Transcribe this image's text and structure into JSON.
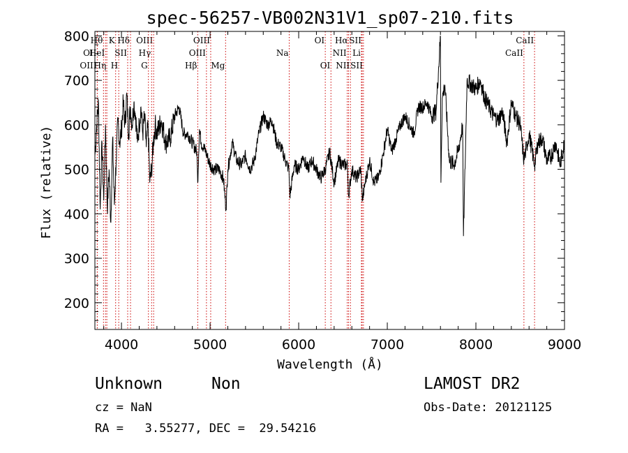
{
  "chart_data": {
    "type": "line",
    "title": "spec-56257-VB002N31V1_sp07-210.fits",
    "xlabel": "Wavelength (Å)",
    "ylabel": "Flux (relative)",
    "xlim": [
      3700,
      9000
    ],
    "ylim": [
      140,
      810
    ],
    "xticks": [
      4000,
      5000,
      6000,
      7000,
      8000,
      9000
    ],
    "yticks": [
      200,
      300,
      400,
      500,
      600,
      700,
      800
    ],
    "grid": false,
    "series": [
      {
        "x": [
          3700,
          3720,
          3740,
          3760,
          3780,
          3800,
          3820,
          3840,
          3860,
          3880,
          3900,
          3920,
          3940,
          3960,
          3980,
          4000,
          4020,
          4040,
          4060,
          4080,
          4100,
          4120,
          4140,
          4160,
          4180,
          4200,
          4220,
          4240,
          4260,
          4280,
          4300,
          4320,
          4340,
          4360,
          4380,
          4400,
          4450,
          4500,
          4550,
          4600,
          4650,
          4700,
          4750,
          4800,
          4850,
          4860,
          4880,
          4900,
          4950,
          5000,
          5050,
          5100,
          5150,
          5180,
          5200,
          5250,
          5300,
          5350,
          5400,
          5450,
          5500,
          5550,
          5600,
          5650,
          5700,
          5750,
          5800,
          5850,
          5890,
          5900,
          5950,
          6000,
          6050,
          6100,
          6150,
          6200,
          6250,
          6300,
          6350,
          6400,
          6450,
          6500,
          6550,
          6563,
          6600,
          6650,
          6700,
          6720,
          6750,
          6800,
          6850,
          6900,
          6950,
          7000,
          7050,
          7100,
          7150,
          7200,
          7250,
          7300,
          7350,
          7400,
          7450,
          7500,
          7550,
          7600,
          7605,
          7620,
          7650,
          7700,
          7750,
          7800,
          7850,
          7860,
          7900,
          7950,
          8000,
          8050,
          8100,
          8150,
          8200,
          8250,
          8300,
          8350,
          8400,
          8450,
          8500,
          8542,
          8600,
          8662,
          8700,
          8750,
          8800,
          8850,
          8900,
          8950,
          9000
        ],
        "values": [
          530,
          600,
          650,
          410,
          560,
          430,
          600,
          410,
          500,
          380,
          570,
          420,
          520,
          610,
          560,
          590,
          650,
          600,
          670,
          580,
          640,
          600,
          650,
          620,
          560,
          600,
          640,
          580,
          620,
          550,
          600,
          470,
          500,
          560,
          600,
          580,
          610,
          560,
          570,
          620,
          640,
          580,
          580,
          560,
          540,
          470,
          590,
          560,
          540,
          510,
          500,
          500,
          480,
          410,
          500,
          560,
          520,
          510,
          530,
          500,
          520,
          580,
          620,
          600,
          610,
          560,
          550,
          520,
          500,
          440,
          510,
          500,
          530,
          500,
          520,
          500,
          480,
          500,
          540,
          470,
          520,
          510,
          510,
          440,
          500,
          480,
          500,
          430,
          470,
          520,
          470,
          480,
          530,
          590,
          540,
          570,
          600,
          620,
          600,
          580,
          640,
          640,
          650,
          620,
          630,
          800,
          470,
          660,
          690,
          520,
          510,
          540,
          600,
          350,
          700,
          690,
          680,
          700,
          660,
          640,
          620,
          610,
          630,
          560,
          650,
          620,
          600,
          520,
          580,
          510,
          560,
          570,
          520,
          530,
          560,
          510,
          560
        ]
      }
    ],
    "spectral_lines": [
      {
        "label": "Hθ",
        "wave": 3797,
        "row": 0
      },
      {
        "label": "OII",
        "wave": 3727,
        "row": 1
      },
      {
        "label": "OIII",
        "wave": 3727,
        "row": 2
      },
      {
        "label": "HeI",
        "wave": 3820,
        "row": 1
      },
      {
        "label": "Hη",
        "wave": 3835,
        "row": 2
      },
      {
        "label": "K",
        "wave": 3934,
        "row": 0
      },
      {
        "label": "SII",
        "wave": 4070,
        "row": 1
      },
      {
        "label": "H",
        "wave": 3969,
        "row": 2
      },
      {
        "label": "Hδ",
        "wave": 4102,
        "row": 0
      },
      {
        "label": "OIII",
        "wave": 4363,
        "row": 0
      },
      {
        "label": "Hγ",
        "wave": 4340,
        "row": 1
      },
      {
        "label": "G",
        "wave": 4304,
        "row": 2
      },
      {
        "label": "Hβ",
        "wave": 4861,
        "row": 2
      },
      {
        "label": "OIII",
        "wave": 5007,
        "row": 0
      },
      {
        "label": "OIII",
        "wave": 4959,
        "row": 1
      },
      {
        "label": "Mg",
        "wave": 5175,
        "row": 2
      },
      {
        "label": "Na",
        "wave": 5893,
        "row": 1
      },
      {
        "label": "OI",
        "wave": 6300,
        "row": 0
      },
      {
        "label": "OI",
        "wave": 6364,
        "row": 2
      },
      {
        "label": "Hα",
        "wave": 6563,
        "row": 0
      },
      {
        "label": "SII",
        "wave": 6716,
        "row": 0
      },
      {
        "label": "NII",
        "wave": 6548,
        "row": 1
      },
      {
        "label": "Li",
        "wave": 6708,
        "row": 1
      },
      {
        "label": "NII",
        "wave": 6584,
        "row": 2
      },
      {
        "label": "SII",
        "wave": 6731,
        "row": 2
      },
      {
        "label": "CaII",
        "wave": 8662,
        "row": 0
      },
      {
        "label": "CaII",
        "wave": 8542,
        "row": 1
      }
    ]
  },
  "info": {
    "object_class": "Unknown",
    "subclass": "Non",
    "survey": "LAMOST DR2",
    "cz": "cz = NaN",
    "obs_date": "Obs-Date: 20121125",
    "coords": "RA =   3.55277, DEC =  29.54216"
  }
}
